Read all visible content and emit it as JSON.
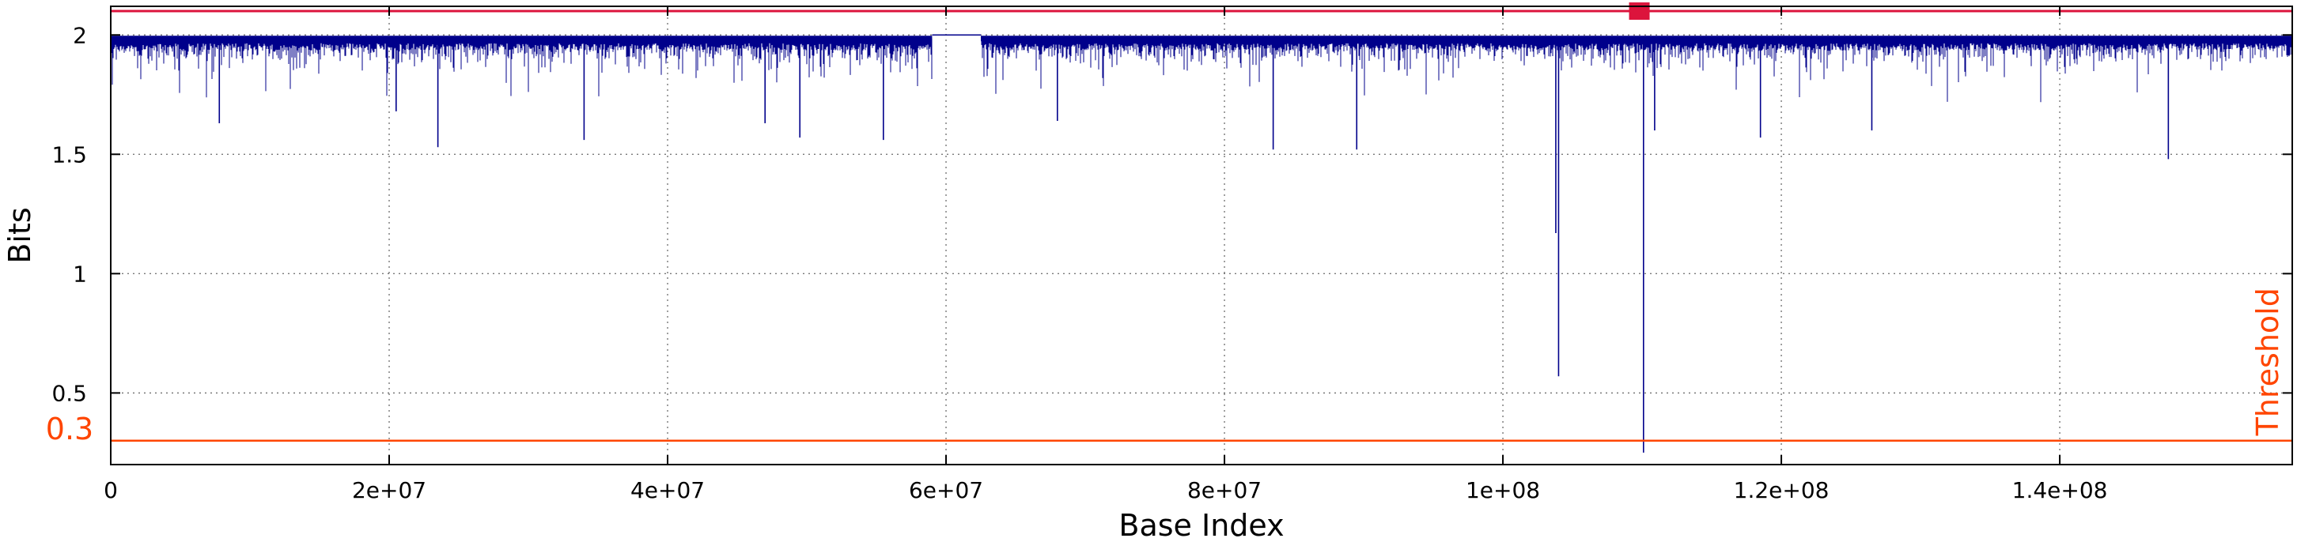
{
  "chart_data": {
    "type": "line",
    "xlabel": "Base Index",
    "ylabel": "Bits",
    "xlim": [
      0,
      156700000
    ],
    "ylim": [
      0.2,
      2.12
    ],
    "grid": true,
    "x_ticks": [
      {
        "value": 0,
        "label": "0"
      },
      {
        "value": 20000000,
        "label": "2e+07"
      },
      {
        "value": 40000000,
        "label": "4e+07"
      },
      {
        "value": 60000000,
        "label": "6e+07"
      },
      {
        "value": 80000000,
        "label": "8e+07"
      },
      {
        "value": 100000000,
        "label": "1e+08"
      },
      {
        "value": 120000000,
        "label": "1.2e+08"
      },
      {
        "value": 140000000,
        "label": "1.4e+08"
      }
    ],
    "y_ticks": [
      {
        "value": 0.5,
        "label": "0.5"
      },
      {
        "value": 1,
        "label": "1"
      },
      {
        "value": 1.5,
        "label": "1.5"
      },
      {
        "value": 2,
        "label": "2"
      }
    ],
    "colors": {
      "series": "#00008b",
      "threshold": "#ff4500",
      "top_line": "#dc143c",
      "marker": "#dc143c"
    },
    "series": {
      "band_top": 1.985,
      "gap": [
        59000000,
        62500000
      ],
      "gap_value": 2.0,
      "spikes": [
        {
          "x": 7800000,
          "y": 1.63
        },
        {
          "x": 20500000,
          "y": 1.68
        },
        {
          "x": 23500000,
          "y": 1.53
        },
        {
          "x": 34000000,
          "y": 1.56
        },
        {
          "x": 47000000,
          "y": 1.63
        },
        {
          "x": 49500000,
          "y": 1.57
        },
        {
          "x": 55500000,
          "y": 1.56
        },
        {
          "x": 68000000,
          "y": 1.64
        },
        {
          "x": 83500000,
          "y": 1.52
        },
        {
          "x": 89500000,
          "y": 1.52
        },
        {
          "x": 103800000,
          "y": 1.17
        },
        {
          "x": 104000000,
          "y": 0.57
        },
        {
          "x": 110100000,
          "y": 0.25
        },
        {
          "x": 110900000,
          "y": 1.6
        },
        {
          "x": 118500000,
          "y": 1.57
        },
        {
          "x": 126500000,
          "y": 1.6
        },
        {
          "x": 147800000,
          "y": 1.48
        }
      ]
    },
    "threshold": {
      "value": 0.3,
      "value_label": "0.3",
      "label": "Threshold"
    },
    "top_line": {
      "value": 2.1
    },
    "marker": {
      "x": 109800000,
      "y": 2.1
    }
  }
}
